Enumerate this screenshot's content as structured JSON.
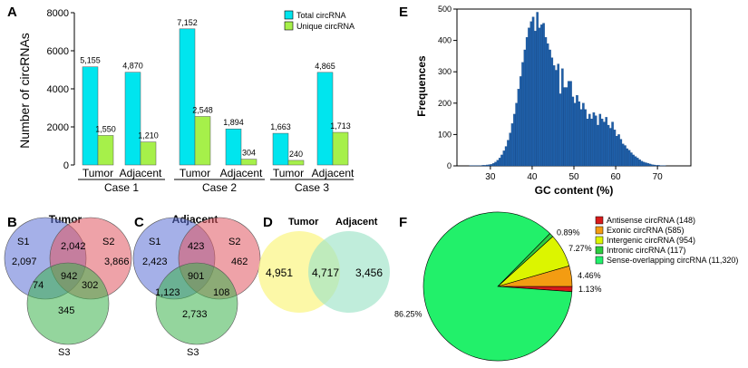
{
  "panels": {
    "A": {
      "letter": "A",
      "chart_data": {
        "type": "bar",
        "title": "",
        "ylabel": "Number of circRNAs",
        "ylim": [
          0,
          8000
        ],
        "yticks": [
          0,
          2000,
          4000,
          6000,
          8000
        ],
        "categories": [
          "Tumor",
          "Adjacent",
          "Tumor",
          "Adjacent",
          "Tumor",
          "Adjacent"
        ],
        "groups": [
          "Case 1",
          "Case 2",
          "Case 3"
        ],
        "series": [
          {
            "name": "Total circRNA",
            "color": "#00e5ee",
            "values": [
              5155,
              4870,
              7152,
              1894,
              1663,
              4865
            ],
            "labels": [
              "5,155",
              "4,870",
              "7,152",
              "1,894",
              "1,663",
              "4,865"
            ]
          },
          {
            "name": "Unique circRNA",
            "color": "#a6f04a",
            "values": [
              1550,
              1210,
              2548,
              304,
              240,
              1713
            ],
            "labels": [
              "1,550",
              "1,210",
              "2,548",
              "304",
              "240",
              "1,713"
            ]
          }
        ]
      }
    },
    "E": {
      "letter": "E",
      "chart_data": {
        "type": "bar",
        "subtype": "histogram",
        "xlabel": "GC content (%)",
        "ylabel": "Frequences",
        "xlim": [
          22,
          78
        ],
        "ylim": [
          0,
          500
        ],
        "xticks": [
          30,
          40,
          50,
          60,
          70
        ],
        "yticks": [
          0,
          100,
          200,
          300,
          400,
          500
        ],
        "bin_width": 0.5,
        "bar_color": "#1f5fa8",
        "x": [
          25.25,
          25.75,
          26.25,
          26.75,
          27.25,
          27.75,
          28.25,
          28.75,
          29.25,
          29.75,
          30.25,
          30.75,
          31.25,
          31.75,
          32.25,
          32.75,
          33.25,
          33.75,
          34.25,
          34.75,
          35.25,
          35.75,
          36.25,
          36.75,
          37.25,
          37.75,
          38.25,
          38.75,
          39.25,
          39.75,
          40.25,
          40.75,
          41.25,
          41.75,
          42.25,
          42.75,
          43.25,
          43.75,
          44.25,
          44.75,
          45.25,
          45.75,
          46.25,
          46.75,
          47.25,
          47.75,
          48.25,
          48.75,
          49.25,
          49.75,
          50.25,
          50.75,
          51.25,
          51.75,
          52.25,
          52.75,
          53.25,
          53.75,
          54.25,
          54.75,
          55.25,
          55.75,
          56.25,
          56.75,
          57.25,
          57.75,
          58.25,
          58.75,
          59.25,
          59.75,
          60.25,
          60.75,
          61.25,
          61.75,
          62.25,
          62.75,
          63.25,
          63.75,
          64.25,
          64.75,
          65.25,
          65.75,
          66.25,
          66.75,
          67.25,
          67.75,
          68.25,
          68.75,
          69.25,
          69.75,
          70.25,
          70.75,
          71.25,
          71.75,
          72.25,
          72.75,
          73.25,
          73.75,
          74.25,
          74.75,
          75.25,
          75.75
        ],
        "frequencies": [
          1,
          1,
          1,
          1,
          1,
          1,
          2,
          2,
          3,
          4,
          5,
          8,
          12,
          18,
          25,
          35,
          48,
          62,
          82,
          105,
          135,
          165,
          200,
          245,
          285,
          330,
          370,
          410,
          440,
          460,
          475,
          430,
          490,
          440,
          450,
          455,
          410,
          390,
          370,
          345,
          320,
          305,
          325,
          230,
          310,
          250,
          250,
          270,
          270,
          220,
          200,
          225,
          205,
          180,
          200,
          180,
          150,
          165,
          150,
          170,
          160,
          130,
          165,
          150,
          140,
          155,
          130,
          120,
          140,
          115,
          95,
          100,
          85,
          70,
          65,
          55,
          50,
          42,
          35,
          30,
          25,
          20,
          15,
          12,
          10,
          8,
          6,
          4,
          3,
          2,
          2,
          1,
          1,
          1,
          0,
          0,
          0,
          0,
          0,
          0,
          0,
          0
        ]
      }
    },
    "B": {
      "letter": "B",
      "title": "Tumor",
      "set_labels": [
        "S1",
        "S2",
        "S3"
      ],
      "regions": {
        "s1_only": "2,097",
        "s2_only": "3,866",
        "s3_only": "345",
        "s1_s2": "2,042",
        "s1_s3": "74",
        "s2_s3": "302",
        "all": "942"
      }
    },
    "C": {
      "letter": "C",
      "title": "Adjacent",
      "set_labels": [
        "S1",
        "S2",
        "S3"
      ],
      "regions": {
        "s1_only": "2,423",
        "s2_only": "462",
        "s3_only": "2,733",
        "s1_s2": "423",
        "s1_s3": "1,123",
        "s2_s3": "108",
        "all": "901"
      }
    },
    "D": {
      "letter": "D",
      "labels": [
        "Tumor",
        "Adjacent"
      ],
      "regions": {
        "left_only": "4,951",
        "both": "4,717",
        "right_only": "3,456"
      }
    },
    "F": {
      "letter": "F",
      "chart_data": {
        "type": "pie",
        "slices": [
          {
            "name": "Antisense circRNA (148)",
            "value": 1.13,
            "label": "1.13%",
            "color": "#d81b1b"
          },
          {
            "name": "Exonic circRNA (585)",
            "value": 4.46,
            "label": "4.46%",
            "color": "#f39c12"
          },
          {
            "name": "Intergenic circRNA (954)",
            "value": 7.27,
            "label": "7.27%",
            "color": "#dcf500"
          },
          {
            "name": "Intronic circRNA (117)",
            "value": 0.89,
            "label": "0.89%",
            "color": "#2ecc40"
          },
          {
            "name": "Sense-overlapping circRNA (11,320)",
            "value": 86.25,
            "label": "86.25%",
            "color": "#22f06a"
          }
        ]
      }
    }
  },
  "colors": {
    "venn_s1": "#5b6fd6",
    "venn_s2": "#e05560",
    "venn_s3": "#3db24c",
    "venn_d_left": "#fbf58a",
    "venn_d_right": "#9ee3c8"
  }
}
